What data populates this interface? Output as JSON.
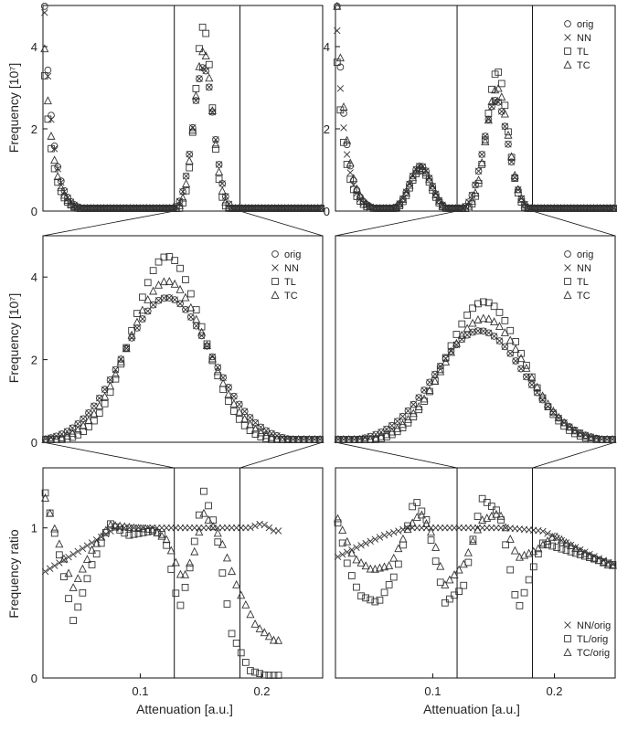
{
  "figure": {
    "ylabel_top": "Frequency [10⁷]",
    "ylabel_mid": "Frequency [10⁷]",
    "ylabel_bottom": "Frequency ratio",
    "xlabel": "Attenuation [a.u.]"
  },
  "chart_data": [
    {
      "type": "scatter",
      "panel": "top-left",
      "x_range": [
        0.02,
        0.25
      ],
      "ylim": [
        0,
        5
      ],
      "yticks": [
        0,
        2,
        4
      ],
      "window": [
        0.128,
        0.182
      ],
      "legend": null,
      "series": [
        {
          "name": "orig",
          "marker": "circle",
          "peaks": [
            {
              "center": 0.152,
              "height": 3.5,
              "width": 0.0085
            }
          ],
          "spike": 4.6
        },
        {
          "name": "NN",
          "marker": "x",
          "peaks": [
            {
              "center": 0.152,
              "height": 3.5,
              "width": 0.0085
            }
          ],
          "spike": 4.4
        },
        {
          "name": "TL",
          "marker": "square",
          "peaks": [
            {
              "center": 0.152,
              "height": 4.5,
              "width": 0.0068
            }
          ],
          "spike": 3.0
        },
        {
          "name": "TC",
          "marker": "triangle",
          "peaks": [
            {
              "center": 0.152,
              "height": 3.9,
              "width": 0.0076
            }
          ],
          "spike": 3.6
        }
      ]
    },
    {
      "type": "scatter",
      "panel": "top-right",
      "x_range": [
        0.02,
        0.25
      ],
      "ylim": [
        0,
        5
      ],
      "yticks": [
        0,
        2,
        4
      ],
      "window": [
        0.12,
        0.182
      ],
      "legend": [
        "orig",
        "NN",
        "TL",
        "TC"
      ],
      "series": [
        {
          "name": "orig",
          "marker": "circle",
          "peaks": [
            {
              "center": 0.09,
              "height": 1.1,
              "width": 0.009
            },
            {
              "center": 0.152,
              "height": 2.7,
              "width": 0.01
            }
          ],
          "spike": 4.7
        },
        {
          "name": "NN",
          "marker": "x",
          "peaks": [
            {
              "center": 0.09,
              "height": 1.1,
              "width": 0.009
            },
            {
              "center": 0.152,
              "height": 2.7,
              "width": 0.01
            }
          ],
          "spike": 4.0
        },
        {
          "name": "TL",
          "marker": "square",
          "peaks": [
            {
              "center": 0.09,
              "height": 1.0,
              "width": 0.0085
            },
            {
              "center": 0.153,
              "height": 3.4,
              "width": 0.0085
            }
          ],
          "spike": 3.3
        },
        {
          "name": "TC",
          "marker": "triangle",
          "peaks": [
            {
              "center": 0.09,
              "height": 1.05,
              "width": 0.009
            },
            {
              "center": 0.153,
              "height": 3.0,
              "width": 0.0092
            }
          ],
          "spike": 5.0
        }
      ]
    },
    {
      "type": "scatter",
      "panel": "middle-left",
      "x_range": [
        0.128,
        0.182
      ],
      "ylim": [
        0,
        5
      ],
      "yticks": [
        0,
        2,
        4
      ],
      "legend": [
        "orig",
        "NN",
        "TL",
        "TC"
      ],
      "series": [
        {
          "name": "orig",
          "marker": "circle",
          "peaks": [
            {
              "center": 0.152,
              "height": 3.5,
              "width": 0.0085
            }
          ]
        },
        {
          "name": "NN",
          "marker": "x",
          "peaks": [
            {
              "center": 0.152,
              "height": 3.5,
              "width": 0.0085
            }
          ]
        },
        {
          "name": "TL",
          "marker": "square",
          "peaks": [
            {
              "center": 0.152,
              "height": 4.5,
              "width": 0.0068
            }
          ]
        },
        {
          "name": "TC",
          "marker": "triangle",
          "peaks": [
            {
              "center": 0.152,
              "height": 3.9,
              "width": 0.0076
            }
          ]
        }
      ]
    },
    {
      "type": "scatter",
      "panel": "middle-right",
      "x_range": [
        0.12,
        0.182
      ],
      "ylim": [
        0,
        5
      ],
      "yticks": [],
      "legend": [
        "orig",
        "NN",
        "TL",
        "TC"
      ],
      "series": [
        {
          "name": "orig",
          "marker": "circle",
          "peaks": [
            {
              "center": 0.152,
              "height": 2.7,
              "width": 0.01
            }
          ]
        },
        {
          "name": "NN",
          "marker": "x",
          "peaks": [
            {
              "center": 0.152,
              "height": 2.7,
              "width": 0.01
            }
          ]
        },
        {
          "name": "TL",
          "marker": "square",
          "peaks": [
            {
              "center": 0.153,
              "height": 3.4,
              "width": 0.0085
            }
          ]
        },
        {
          "name": "TC",
          "marker": "triangle",
          "peaks": [
            {
              "center": 0.153,
              "height": 3.0,
              "width": 0.0092
            }
          ]
        }
      ]
    },
    {
      "type": "scatter",
      "panel": "bottom-left",
      "x_range": [
        0.02,
        0.25
      ],
      "ylim": [
        0,
        1.4
      ],
      "yticks": [
        0,
        1
      ],
      "xticks": [
        0.1,
        0.2
      ],
      "window": [
        0.128,
        0.182
      ],
      "legend": null,
      "series": [
        {
          "name": "NN/orig",
          "marker": "x",
          "points": [
            [
              0.02,
              0.7
            ],
            [
              0.04,
              0.8
            ],
            [
              0.06,
              0.9
            ],
            [
              0.08,
              1.0
            ],
            [
              0.11,
              1.0
            ],
            [
              0.15,
              1.0
            ],
            [
              0.19,
              1.0
            ],
            [
              0.2,
              1.03
            ],
            [
              0.21,
              0.98
            ]
          ]
        },
        {
          "name": "TL/orig",
          "marker": "square",
          "points": [
            [
              0.02,
              1.3
            ],
            [
              0.03,
              0.95
            ],
            [
              0.045,
              0.38
            ],
            [
              0.06,
              0.75
            ],
            [
              0.075,
              1.03
            ],
            [
              0.09,
              0.95
            ],
            [
              0.11,
              0.98
            ],
            [
              0.12,
              0.95
            ],
            [
              0.132,
              0.45
            ],
            [
              0.14,
              0.7
            ],
            [
              0.152,
              1.25
            ],
            [
              0.162,
              1.0
            ],
            [
              0.175,
              0.3
            ],
            [
              0.19,
              0.05
            ],
            [
              0.21,
              0.0
            ]
          ]
        },
        {
          "name": "TC/orig",
          "marker": "triangle",
          "points": [
            [
              0.02,
              1.25
            ],
            [
              0.035,
              0.85
            ],
            [
              0.045,
              0.6
            ],
            [
              0.06,
              0.85
            ],
            [
              0.075,
              1.02
            ],
            [
              0.095,
              1.0
            ],
            [
              0.11,
              0.99
            ],
            [
              0.122,
              0.92
            ],
            [
              0.135,
              0.65
            ],
            [
              0.145,
              0.85
            ],
            [
              0.152,
              1.1
            ],
            [
              0.165,
              0.95
            ],
            [
              0.18,
              0.6
            ],
            [
              0.195,
              0.35
            ],
            [
              0.21,
              0.25
            ]
          ]
        }
      ]
    },
    {
      "type": "scatter",
      "panel": "bottom-right",
      "x_range": [
        0.02,
        0.25
      ],
      "ylim": [
        0,
        1.4
      ],
      "yticks": [],
      "xticks": [
        0.1,
        0.2
      ],
      "window": [
        0.12,
        0.182
      ],
      "legend": [
        "NN/orig",
        "TL/orig",
        "TC/orig"
      ],
      "series": [
        {
          "name": "NN/orig",
          "marker": "x",
          "points": [
            [
              0.02,
              0.8
            ],
            [
              0.04,
              0.88
            ],
            [
              0.06,
              0.95
            ],
            [
              0.08,
              1.0
            ],
            [
              0.1,
              1.0
            ],
            [
              0.13,
              1.0
            ],
            [
              0.16,
              1.0
            ],
            [
              0.19,
              0.98
            ],
            [
              0.21,
              0.9
            ],
            [
              0.23,
              0.82
            ],
            [
              0.25,
              0.75
            ]
          ]
        },
        {
          "name": "TL/orig",
          "marker": "square",
          "points": [
            [
              0.02,
              1.1
            ],
            [
              0.03,
              0.75
            ],
            [
              0.04,
              0.55
            ],
            [
              0.055,
              0.5
            ],
            [
              0.07,
              0.7
            ],
            [
              0.085,
              1.2
            ],
            [
              0.095,
              1.05
            ],
            [
              0.11,
              0.5
            ],
            [
              0.125,
              0.6
            ],
            [
              0.14,
              1.2
            ],
            [
              0.155,
              1.1
            ],
            [
              0.17,
              0.45
            ],
            [
              0.19,
              0.9
            ],
            [
              0.21,
              0.85
            ],
            [
              0.23,
              0.8
            ],
            [
              0.25,
              0.75
            ]
          ]
        },
        {
          "name": "TC/orig",
          "marker": "triangle",
          "points": [
            [
              0.02,
              1.1
            ],
            [
              0.035,
              0.8
            ],
            [
              0.05,
              0.72
            ],
            [
              0.065,
              0.75
            ],
            [
              0.08,
              1.0
            ],
            [
              0.09,
              1.1
            ],
            [
              0.1,
              0.95
            ],
            [
              0.11,
              0.62
            ],
            [
              0.125,
              0.75
            ],
            [
              0.14,
              1.05
            ],
            [
              0.155,
              1.1
            ],
            [
              0.17,
              0.8
            ],
            [
              0.185,
              0.85
            ],
            [
              0.2,
              0.95
            ],
            [
              0.22,
              0.85
            ],
            [
              0.245,
              0.75
            ]
          ]
        }
      ]
    }
  ]
}
